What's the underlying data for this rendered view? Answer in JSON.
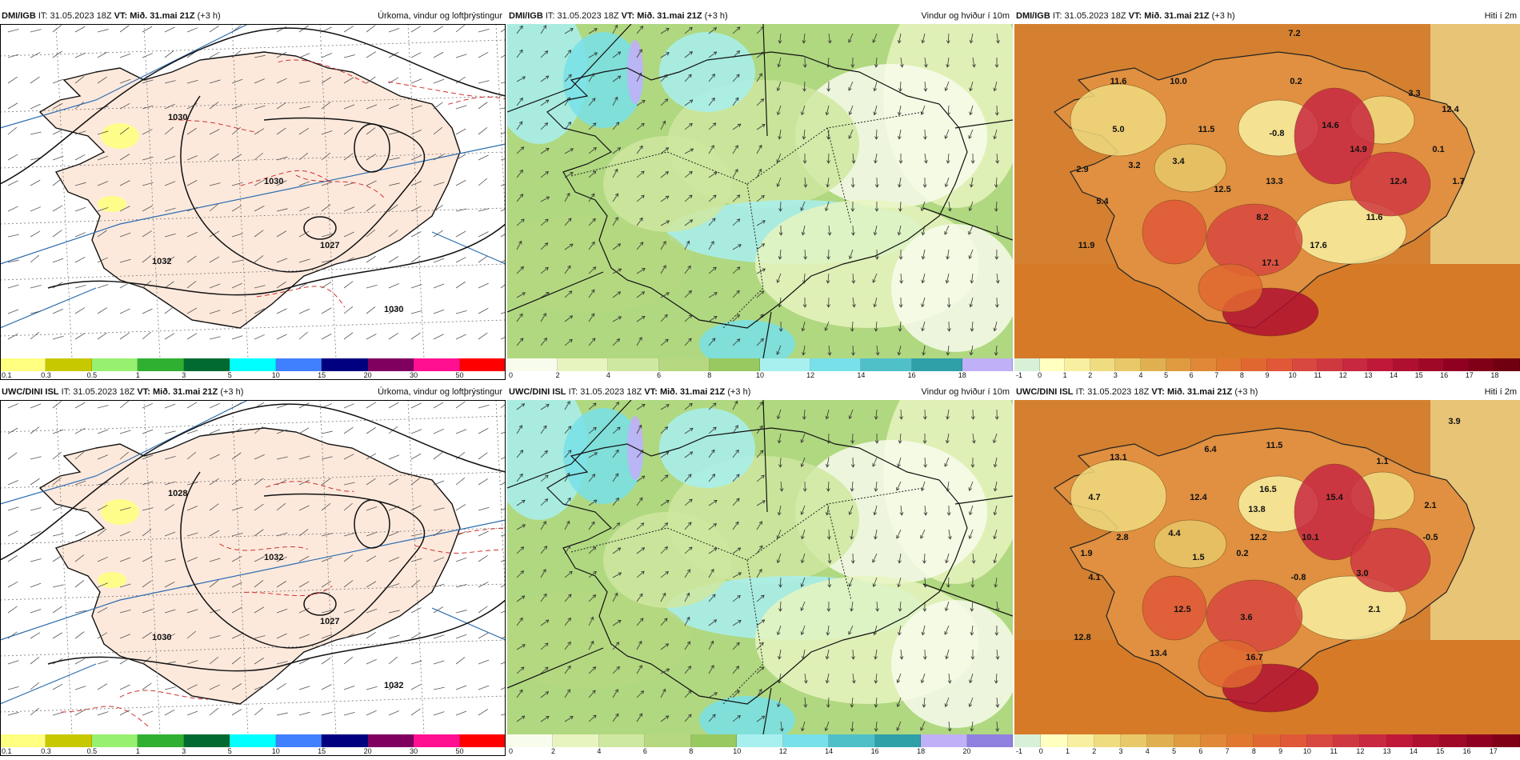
{
  "panels": [
    {
      "model": "DMI/IGB",
      "it_prefix": "IT:",
      "it_value": "31.05.2023 18Z",
      "vt_prefix": "VT:",
      "vt_value": "Mið. 31.mai 21Z",
      "lead": "(+3 h)",
      "title": "Úrkoma, vindur og loftþrýstingur",
      "type": "precip",
      "isobars": [
        "1030",
        "1027",
        "1032",
        "1030",
        "1030"
      ],
      "colorbar": [
        "0.1",
        "0.3",
        "0.5",
        "1",
        "3",
        "5",
        "10",
        "15",
        "20",
        "30",
        "50"
      ]
    },
    {
      "model": "DMI/IGB",
      "it_prefix": "IT:",
      "it_value": "31.05.2023 18Z",
      "vt_prefix": "VT:",
      "vt_value": "Mið. 31.mai 21Z",
      "lead": "(+3 h)",
      "title": "Vindur og hviður í 10m",
      "type": "wind",
      "colorbar": [
        "0",
        "2",
        "4",
        "6",
        "8",
        "10",
        "12",
        "14",
        "16",
        "18"
      ]
    },
    {
      "model": "DMI/IGB",
      "it_prefix": "IT:",
      "it_value": "31.05.2023 18Z",
      "vt_prefix": "VT:",
      "vt_value": "Mið. 31.mai 21Z",
      "lead": "(+3 h)",
      "title": "Hiti í 2m",
      "type": "temp",
      "temps": [
        "7.2",
        "11.6",
        "10.0",
        "0.2",
        "3.3",
        "12.4",
        "5.0",
        "11.5",
        "-0.8",
        "14.6",
        "14.9",
        "0.1",
        "2.9",
        "3.2",
        "3.4",
        "13.3",
        "12.4",
        "1.7",
        "5.4",
        "12.5",
        "8.2",
        "11.6",
        "11.9",
        "17.6",
        "17.1"
      ],
      "colorbar": [
        "-1",
        "0",
        "1",
        "2",
        "3",
        "4",
        "5",
        "6",
        "7",
        "8",
        "9",
        "10",
        "11",
        "12",
        "13",
        "14",
        "15",
        "16",
        "17",
        "18"
      ]
    },
    {
      "model": "UWC/DINI ISL",
      "it_prefix": "IT:",
      "it_value": "31.05.2023 18Z",
      "vt_prefix": "VT:",
      "vt_value": "Mið. 31.mai 21Z",
      "lead": "(+3 h)",
      "title": "Úrkoma, vindur og loftþrýstingur",
      "type": "precip",
      "isobars": [
        "1028",
        "1027",
        "1030",
        "1032",
        "1032"
      ],
      "colorbar": [
        "0.1",
        "0.3",
        "0.5",
        "1",
        "3",
        "5",
        "10",
        "15",
        "20",
        "30",
        "50"
      ]
    },
    {
      "model": "UWC/DINI ISL",
      "it_prefix": "IT:",
      "it_value": "31.05.2023 18Z",
      "vt_prefix": "VT:",
      "vt_value": "Mið. 31.mai 21Z",
      "lead": "(+3 h)",
      "title": "Vindur og hviður í 10m",
      "type": "wind",
      "colorbar": [
        "0",
        "2",
        "4",
        "6",
        "8",
        "10",
        "12",
        "14",
        "16",
        "18",
        "20"
      ]
    },
    {
      "model": "UWC/DINI ISL",
      "it_prefix": "IT:",
      "it_value": "31.05.2023 18Z",
      "vt_prefix": "VT:",
      "vt_value": "Mið. 31.mai 21Z",
      "lead": "(+3 h)",
      "title": "Hiti í 2m",
      "type": "temp",
      "temps": [
        "3.9",
        "13.1",
        "6.4",
        "11.5",
        "1.1",
        "4.7",
        "12.4",
        "16.5",
        "13.8",
        "15.4",
        "2.1",
        "2.8",
        "4.4",
        "12.2",
        "10.1",
        "-0.5",
        "1.9",
        "1.5",
        "0.2",
        "4.1",
        "-0.8",
        "3.0",
        "12.5",
        "3.6",
        "2.1",
        "12.8",
        "13.4",
        "16.7"
      ],
      "colorbar": [
        "-1",
        "0",
        "1",
        "2",
        "3",
        "4",
        "5",
        "6",
        "7",
        "8",
        "9",
        "10",
        "11",
        "12",
        "13",
        "14",
        "15",
        "16",
        "17"
      ]
    }
  ],
  "colors": {
    "precip": [
      "#ffff80",
      "#c8c800",
      "#98f070",
      "#30b030",
      "#006a30",
      "#00ffff",
      "#4080ff",
      "#000080",
      "#800060",
      "#ff1090",
      "#ff0000"
    ],
    "wind": [
      "#f8fcec",
      "#e8f4c0",
      "#cfe8a0",
      "#b5d880",
      "#98c860",
      "#a8f0f0",
      "#78e0e8",
      "#50c0c8",
      "#30a0a8",
      "#c0b0f8",
      "#9080e0"
    ],
    "temp": [
      "#d8f0d8",
      "#ffffc0",
      "#f8f0a0",
      "#f0dc80",
      "#e8c868",
      "#e0b050",
      "#e09a40",
      "#e08838",
      "#e07830",
      "#e06830",
      "#e05838",
      "#d84840",
      "#d03840",
      "#c82840",
      "#c01838",
      "#b01030",
      "#a00828",
      "#900020",
      "#800018",
      "#700010"
    ],
    "land_precip": "#fde9dc",
    "sea_precip": "#ffffff"
  }
}
